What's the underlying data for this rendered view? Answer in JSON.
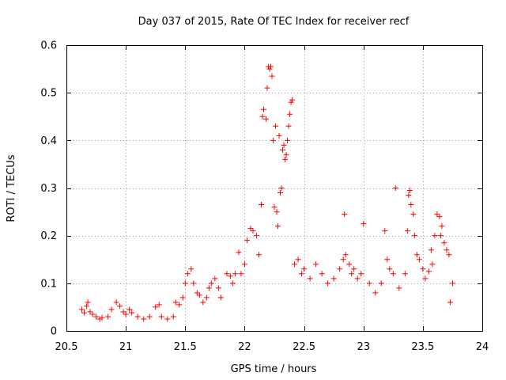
{
  "chart_data": {
    "type": "scatter",
    "title": "Day 037 of 2015, Rate Of TEC Index for receiver recf",
    "xlabel": "GPS time / hours",
    "ylabel": "ROTI / TECUs",
    "xlim": [
      20.5,
      24
    ],
    "ylim": [
      0,
      0.6
    ],
    "x_ticks": [
      20.5,
      21,
      21.5,
      22,
      22.5,
      23,
      23.5,
      24
    ],
    "x_tick_labels": [
      "20.5",
      "21",
      "21.5",
      "22",
      "22.5",
      "23",
      "23.5",
      "24"
    ],
    "y_ticks": [
      0,
      0.1,
      0.2,
      0.3,
      0.4,
      0.5,
      0.6
    ],
    "y_tick_labels": [
      "0",
      "0.1",
      "0.2",
      "0.3",
      "0.4",
      "0.5",
      "0.6"
    ],
    "grid": true,
    "marker": "+",
    "colors": {
      "series": "#ff0000",
      "grid": "#a0a0a0",
      "axis": "#000000"
    },
    "series": [
      {
        "name": "ROTI",
        "points": [
          [
            20.63,
            0.045
          ],
          [
            20.65,
            0.038
          ],
          [
            20.67,
            0.052
          ],
          [
            20.68,
            0.06
          ],
          [
            20.7,
            0.04
          ],
          [
            20.72,
            0.035
          ],
          [
            20.75,
            0.03
          ],
          [
            20.78,
            0.025
          ],
          [
            20.8,
            0.028
          ],
          [
            20.85,
            0.03
          ],
          [
            20.88,
            0.045
          ],
          [
            20.92,
            0.06
          ],
          [
            20.95,
            0.052
          ],
          [
            20.98,
            0.04
          ],
          [
            21.0,
            0.035
          ],
          [
            21.03,
            0.045
          ],
          [
            21.05,
            0.038
          ],
          [
            21.1,
            0.03
          ],
          [
            21.15,
            0.025
          ],
          [
            21.2,
            0.03
          ],
          [
            21.25,
            0.05
          ],
          [
            21.28,
            0.055
          ],
          [
            21.3,
            0.03
          ],
          [
            21.35,
            0.025
          ],
          [
            21.4,
            0.03
          ],
          [
            21.42,
            0.06
          ],
          [
            21.45,
            0.055
          ],
          [
            21.48,
            0.07
          ],
          [
            21.5,
            0.1
          ],
          [
            21.52,
            0.12
          ],
          [
            21.55,
            0.13
          ],
          [
            21.57,
            0.1
          ],
          [
            21.6,
            0.08
          ],
          [
            21.62,
            0.075
          ],
          [
            21.65,
            0.06
          ],
          [
            21.68,
            0.07
          ],
          [
            21.7,
            0.09
          ],
          [
            21.72,
            0.1
          ],
          [
            21.75,
            0.11
          ],
          [
            21.78,
            0.09
          ],
          [
            21.8,
            0.07
          ],
          [
            21.85,
            0.12
          ],
          [
            21.88,
            0.115
          ],
          [
            21.9,
            0.1
          ],
          [
            21.92,
            0.12
          ],
          [
            21.95,
            0.165
          ],
          [
            21.97,
            0.12
          ],
          [
            22.0,
            0.14
          ],
          [
            22.02,
            0.19
          ],
          [
            22.05,
            0.215
          ],
          [
            22.07,
            0.21
          ],
          [
            22.1,
            0.2
          ],
          [
            22.12,
            0.16
          ],
          [
            22.14,
            0.265
          ],
          [
            22.15,
            0.45
          ],
          [
            22.16,
            0.465
          ],
          [
            22.18,
            0.445
          ],
          [
            22.19,
            0.51
          ],
          [
            22.2,
            0.555
          ],
          [
            22.21,
            0.55
          ],
          [
            22.22,
            0.555
          ],
          [
            22.23,
            0.535
          ],
          [
            22.24,
            0.4
          ],
          [
            22.25,
            0.26
          ],
          [
            22.26,
            0.43
          ],
          [
            22.27,
            0.25
          ],
          [
            22.28,
            0.22
          ],
          [
            22.29,
            0.41
          ],
          [
            22.3,
            0.29
          ],
          [
            22.31,
            0.3
          ],
          [
            22.32,
            0.38
          ],
          [
            22.33,
            0.39
          ],
          [
            22.34,
            0.36
          ],
          [
            22.35,
            0.37
          ],
          [
            22.36,
            0.4
          ],
          [
            22.37,
            0.43
          ],
          [
            22.38,
            0.455
          ],
          [
            22.39,
            0.48
          ],
          [
            22.4,
            0.485
          ],
          [
            22.42,
            0.14
          ],
          [
            22.45,
            0.15
          ],
          [
            22.48,
            0.12
          ],
          [
            22.5,
            0.13
          ],
          [
            22.55,
            0.11
          ],
          [
            22.6,
            0.14
          ],
          [
            22.65,
            0.12
          ],
          [
            22.7,
            0.1
          ],
          [
            22.75,
            0.11
          ],
          [
            22.8,
            0.13
          ],
          [
            22.83,
            0.15
          ],
          [
            22.84,
            0.245
          ],
          [
            22.85,
            0.16
          ],
          [
            22.88,
            0.14
          ],
          [
            22.9,
            0.12
          ],
          [
            22.92,
            0.13
          ],
          [
            22.95,
            0.11
          ],
          [
            22.98,
            0.12
          ],
          [
            23.0,
            0.225
          ],
          [
            23.05,
            0.1
          ],
          [
            23.1,
            0.08
          ],
          [
            23.15,
            0.1
          ],
          [
            23.18,
            0.21
          ],
          [
            23.2,
            0.15
          ],
          [
            23.22,
            0.13
          ],
          [
            23.25,
            0.12
          ],
          [
            23.27,
            0.3
          ],
          [
            23.3,
            0.09
          ],
          [
            23.35,
            0.12
          ],
          [
            23.37,
            0.21
          ],
          [
            23.38,
            0.285
          ],
          [
            23.39,
            0.295
          ],
          [
            23.4,
            0.265
          ],
          [
            23.42,
            0.245
          ],
          [
            23.43,
            0.2
          ],
          [
            23.45,
            0.16
          ],
          [
            23.47,
            0.15
          ],
          [
            23.5,
            0.13
          ],
          [
            23.52,
            0.11
          ],
          [
            23.55,
            0.125
          ],
          [
            23.57,
            0.17
          ],
          [
            23.58,
            0.14
          ],
          [
            23.6,
            0.2
          ],
          [
            23.62,
            0.245
          ],
          [
            23.64,
            0.24
          ],
          [
            23.65,
            0.2
          ],
          [
            23.66,
            0.22
          ],
          [
            23.68,
            0.185
          ],
          [
            23.7,
            0.17
          ],
          [
            23.72,
            0.16
          ],
          [
            23.73,
            0.06
          ],
          [
            23.75,
            0.1
          ]
        ]
      }
    ]
  }
}
